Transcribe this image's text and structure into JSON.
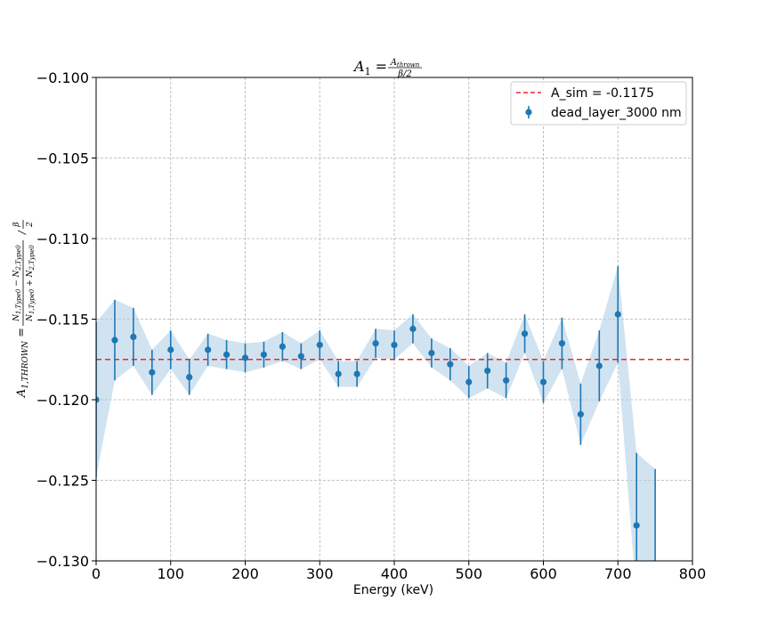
{
  "chart_data": {
    "type": "scatter",
    "title": "A_1 = A_thrown / (β/2)",
    "title_parts": {
      "lhs": "A",
      "lhs_sub": "1",
      "num": "A",
      "num_sub": "thrown",
      "den": "β/2"
    },
    "xlabel": "Energy (keV)",
    "ylabel": "A_{1,THROWN} = (N_{1,Type0} − N_{2,Type0}) / (N_{1,Type0} + N_{2,Type0}) / (β/2)",
    "xlim": [
      0,
      800
    ],
    "ylim": [
      -0.13,
      -0.1
    ],
    "x_ticks": [
      0,
      100,
      200,
      300,
      400,
      500,
      600,
      700,
      800
    ],
    "x_tick_labels": [
      "0",
      "100",
      "200",
      "300",
      "400",
      "500",
      "600",
      "700",
      "800"
    ],
    "y_ticks": [
      -0.1,
      -0.105,
      -0.11,
      -0.115,
      -0.12,
      -0.125,
      -0.13
    ],
    "y_tick_labels": [
      "−0.100",
      "−0.105",
      "−0.110",
      "−0.115",
      "−0.120",
      "−0.125",
      "−0.130"
    ],
    "grid": true,
    "legend_position": "top-right",
    "reference_line": {
      "label": "A_sim = -0.1175",
      "value": -0.1175,
      "color": "#e8282b",
      "style": "dashed"
    },
    "series": [
      {
        "name": "dead_layer_3000 nm",
        "color": "#1f77b4",
        "band_color": "#b3d0e6",
        "x": [
          0,
          25,
          50,
          75,
          100,
          125,
          150,
          175,
          200,
          225,
          250,
          275,
          300,
          325,
          350,
          375,
          400,
          425,
          450,
          475,
          500,
          525,
          550,
          575,
          600,
          625,
          650,
          675,
          700,
          725,
          750
        ],
        "y": [
          -0.12,
          -0.1163,
          -0.1161,
          -0.1183,
          -0.1169,
          -0.1186,
          -0.1169,
          -0.1172,
          -0.1174,
          -0.1172,
          -0.1167,
          -0.1173,
          -0.1166,
          -0.1184,
          -0.1184,
          -0.1165,
          -0.1166,
          -0.1156,
          -0.1171,
          -0.1178,
          -0.1189,
          -0.1182,
          -0.1188,
          -0.1159,
          -0.1189,
          -0.1165,
          -0.1209,
          -0.1179,
          -0.1147,
          -0.1278,
          null
        ],
        "yerr": [
          0.0048,
          0.0025,
          0.0018,
          0.0014,
          0.0012,
          0.0011,
          0.001,
          0.0009,
          0.0009,
          0.0008,
          0.0009,
          0.0008,
          0.0009,
          0.0008,
          0.0008,
          0.0009,
          0.0009,
          0.0009,
          0.0009,
          0.001,
          0.001,
          0.0011,
          0.0011,
          0.0012,
          0.0013,
          0.0016,
          0.0019,
          0.0022,
          0.003,
          0.0045,
          0.006
        ],
        "y_bounds_last": [
          -0.1243,
          -0.1303
        ]
      }
    ]
  }
}
